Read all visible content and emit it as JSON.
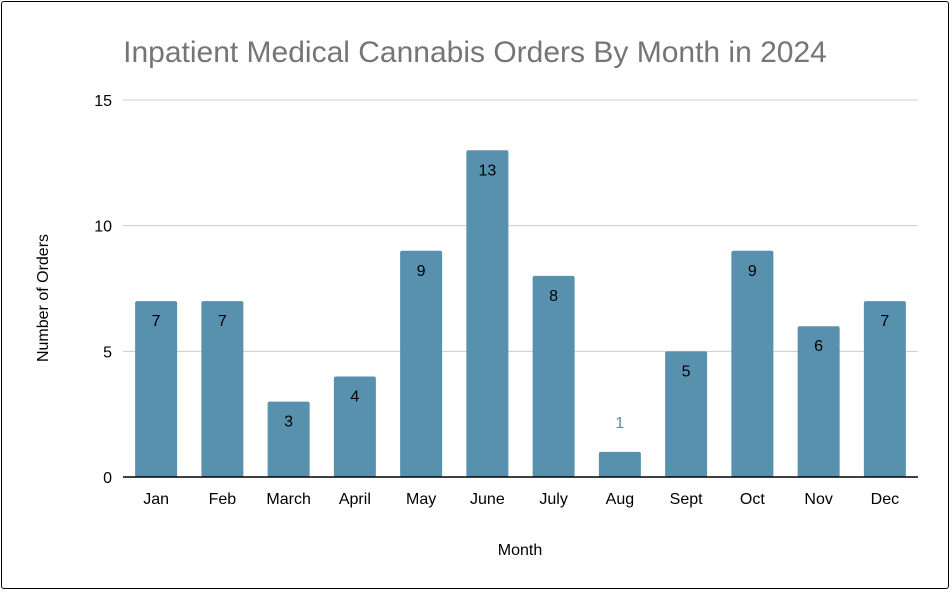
{
  "chart_data": {
    "type": "bar",
    "title": "Inpatient Medical Cannabis Orders By Month in 2024",
    "xlabel": "Month",
    "ylabel": "Number of Orders",
    "categories": [
      "Jan",
      "Feb",
      "March",
      "April",
      "May",
      "June",
      "July",
      "Aug",
      "Sept",
      "Oct",
      "Nov",
      "Dec"
    ],
    "values": [
      7,
      7,
      3,
      4,
      9,
      13,
      8,
      1,
      5,
      9,
      6,
      7
    ],
    "ylim": [
      0,
      15
    ],
    "yticks": [
      0,
      5,
      10,
      15
    ],
    "grid": true,
    "legend": "none",
    "colors": {
      "bar": "#5791ae",
      "title": "#757575",
      "grid": "#cccccc",
      "axis": "#000000"
    }
  }
}
